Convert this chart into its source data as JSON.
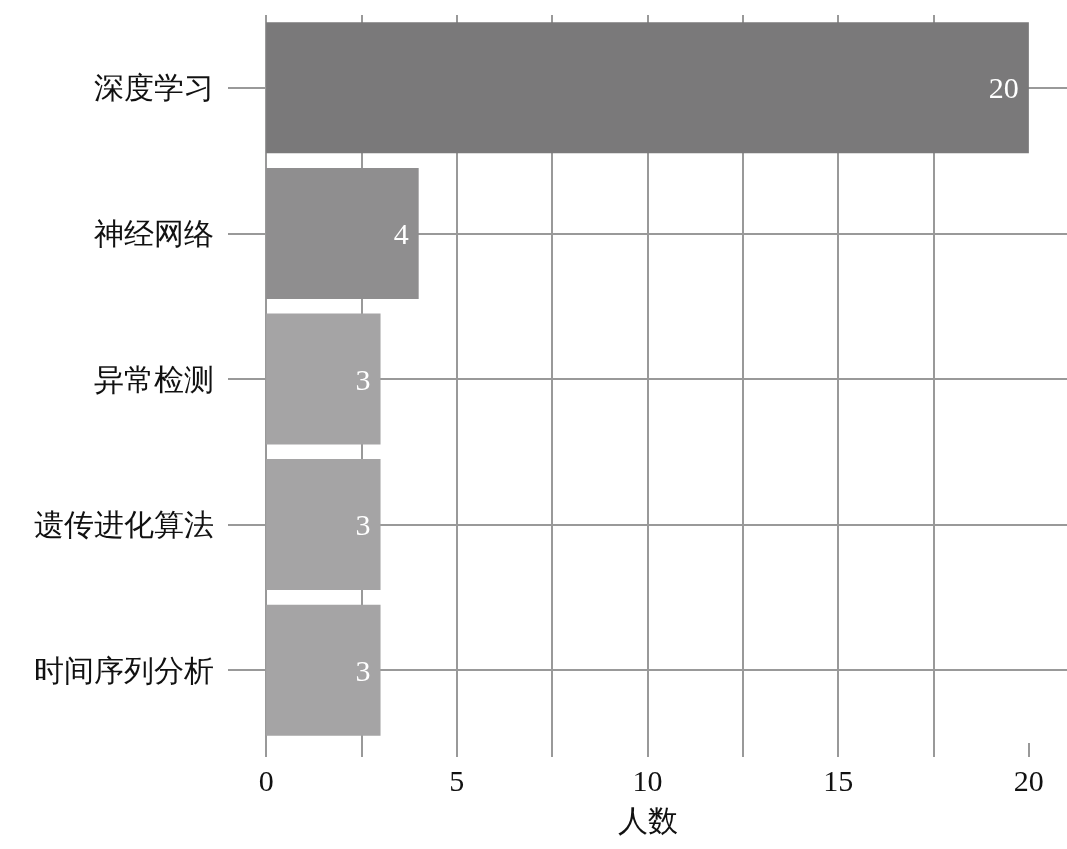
{
  "chart_data": {
    "type": "bar",
    "orientation": "horizontal",
    "xlabel": "人数",
    "categories": [
      "深度学习",
      "神经网络",
      "异常检测",
      "遗传进化算法",
      "时间序列分析"
    ],
    "values": [
      20,
      4,
      3,
      3,
      3
    ],
    "colors": [
      "#7a797a",
      "#8f8e8f",
      "#a5a4a5",
      "#a5a4a5",
      "#a5a4a5"
    ],
    "xlim": [
      -1,
      21
    ],
    "xticks": [
      0,
      {
        "value": 2.5,
        "label": null
      },
      5,
      {
        "value": 7.5,
        "label": null
      },
      10,
      {
        "value": 12.5,
        "label": null
      },
      15,
      {
        "value": 17.5,
        "label": null
      },
      20
    ],
    "grid": true,
    "data_labels": true
  }
}
